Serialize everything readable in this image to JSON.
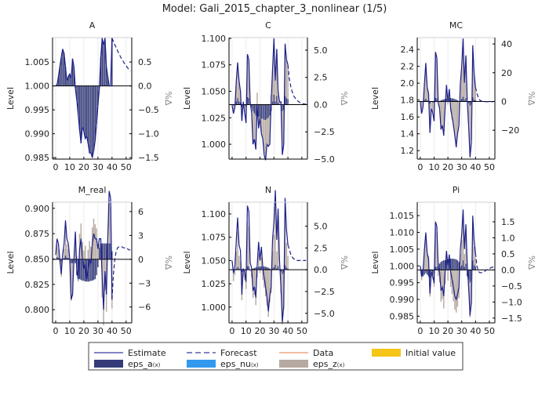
{
  "title": "Model: Gali_2015_chapter_3_nonlinear  (1/5)",
  "colors": {
    "estimate": "#1b1f8a",
    "eps_a": "#353b78",
    "eps_nu": "#3399ee",
    "eps_z": "#b5a9a1",
    "data": "#f4a582",
    "initial": "#f5c518",
    "zero_line": "#000000"
  },
  "legend": {
    "placement": "bottom",
    "items": [
      {
        "label": "Estimate",
        "kind": "line",
        "color": "#5a5ab0"
      },
      {
        "label": "Forecast",
        "kind": "dash",
        "color": "#5a5ab0"
      },
      {
        "label": "Data",
        "kind": "line",
        "color": "#f4a582"
      },
      {
        "label": "Initial value",
        "kind": "box",
        "color": "#f5c518"
      },
      {
        "label": "eps_a",
        "sub": "(x)",
        "kind": "box",
        "color": "#353b78"
      },
      {
        "label": "eps_nu",
        "sub": "(x)",
        "kind": "box",
        "color": "#3399ee"
      },
      {
        "label": "eps_z",
        "sub": "(x)",
        "kind": "box",
        "color": "#b5a9a1"
      }
    ]
  },
  "chart_data": [
    {
      "type": "bar+line",
      "title": "A",
      "ylabel": "Level",
      "y2label": "%Δ",
      "xlim": [
        -2.2,
        54
      ],
      "ylim": [
        0.9847,
        1.0101
      ],
      "y2lim": [
        -1.53,
        1.01
      ],
      "xticks": [
        "0",
        "10",
        "20",
        "30",
        "40",
        "50"
      ],
      "yticks": [
        [
          "0.985",
          0.985
        ],
        [
          "0.990",
          0.99
        ],
        [
          "0.995",
          0.995
        ],
        [
          "1.000",
          1.0
        ],
        [
          "1.005",
          1.005
        ]
      ],
      "y2ticks": [
        [
          "0.5",
          0.5
        ],
        [
          "0.0",
          0
        ],
        [
          "−0.5",
          -0.5
        ],
        [
          "−1.0",
          -1
        ],
        [
          "−1.5",
          -1.5
        ]
      ],
      "estimate": [
        1.0,
        1.0003,
        1.002,
        1.004,
        1.006,
        1.0077,
        1.0068,
        1.004,
        1.001,
        1.002,
        1.0025,
        1.0015,
        1.0057,
        1.004,
        0.9995,
        0.997,
        0.994,
        0.9908,
        0.988,
        0.9915,
        0.9905,
        0.989,
        0.9895,
        0.988,
        0.986,
        0.986,
        0.985,
        0.9865,
        0.9885,
        0.992,
        0.996,
        0.9995,
        1.006,
        1.01,
        1.0085,
        1.01,
        1.004,
        1.002,
        1.0,
        1.0,
        1.01
      ],
      "forecast": [
        1.01,
        1.0093,
        1.0086,
        1.008,
        1.0073,
        1.0067,
        1.0061,
        1.0056,
        1.0051,
        1.0046,
        1.0042,
        1.0038,
        1.0034,
        1.0031
      ],
      "eps_a": [
        0.03,
        0.2,
        0.4,
        0.6,
        0.77,
        0.68,
        0.4,
        0.1,
        0.2,
        0.25,
        0.15,
        0.57,
        0.4,
        -0.05,
        -0.3,
        -0.6,
        -0.92,
        -1.2,
        -0.85,
        -0.95,
        -1.1,
        -1.05,
        -1.2,
        -1.4,
        -1.4,
        -1.5,
        -1.35,
        -1.15,
        -0.8,
        -0.4,
        -0.05,
        0.6,
        1.0,
        0.85,
        1.0,
        0.4,
        0.2,
        0.0,
        0.0,
        1.0
      ],
      "eps_z": []
    },
    {
      "type": "bar+line",
      "title": "C",
      "ylabel": "Level",
      "y2label": "%Δ",
      "xlim": [
        -2.2,
        54
      ],
      "ylim": [
        0.986,
        1.1007
      ],
      "y2lim": [
        -5.0,
        6.15
      ],
      "xticks": [],
      "yticks": [
        [
          "1.000",
          1.0
        ],
        [
          "1.025",
          1.025
        ],
        [
          "1.050",
          1.05
        ],
        [
          "1.075",
          1.075
        ],
        [
          "1.100",
          1.1
        ]
      ],
      "y2ticks": [
        [
          "5.0",
          5
        ],
        [
          "2.5",
          2.5
        ],
        [
          "0.0",
          0
        ],
        [
          "−2.5",
          -2.5
        ],
        [
          "−5.0",
          -5
        ]
      ],
      "estimate": [
        1.037,
        1.029,
        1.035,
        1.06,
        1.077,
        1.06,
        1.05,
        1.022,
        1.04,
        1.03,
        1.02,
        1.085,
        1.08,
        1.04,
        1.03,
        1.0,
        1.005,
        0.995,
        1.037,
        1.015,
        1.025,
        1.01,
        1.005,
        0.99,
        0.985,
        1.0,
        0.998,
        1.0,
        1.04,
        1.07,
        1.1,
        1.06,
        1.09,
        1.05,
        1.04,
        1.04,
        0.99,
        1.0,
        1.095,
        1.08,
        1.075
      ],
      "forecast": [
        1.075,
        1.062,
        1.055,
        1.05,
        1.046,
        1.044,
        1.042,
        1.041,
        1.04,
        1.039,
        1.039,
        1.038,
        1.038,
        1.038
      ],
      "eps_a": [
        -0.1,
        0,
        0.3,
        0.6,
        0.3,
        0.2,
        -0.2,
        0,
        -0.1,
        -0.2,
        0.7,
        0.6,
        0,
        -0.3,
        -0.6,
        -0.8,
        -1,
        -1.1,
        -1.1,
        -1.2,
        -1.3,
        -1.3,
        -1.4,
        -1.4,
        -1.3,
        -1.2,
        -1,
        -0.6,
        0.3,
        0.9,
        0.3,
        0.8,
        0.2,
        0,
        0,
        -0.6,
        -0.5,
        0.8,
        0.6,
        0.5
      ],
      "eps_z": [
        -0.67,
        -0.19,
        1.9,
        3.3,
        1.9,
        1.05,
        -1.25,
        0.3,
        -0.6,
        -1.4,
        3.9,
        3.5,
        0.3,
        -0.4,
        -3.0,
        -2.3,
        -3.0,
        1.1,
        -1.0,
        0,
        -1.3,
        -1.8,
        -3.1,
        -3.6,
        -2.3,
        -2.6,
        -2.6,
        0.9,
        2.9,
        5.1,
        1.9,
        4.3,
        1.05,
        0.3,
        0.3,
        -3.9,
        -3.1,
        4.7,
        3.5,
        3.1
      ]
    },
    {
      "type": "bar+line",
      "title": "MC",
      "ylabel": "Level",
      "y2label": "%Δ",
      "xlim": [
        -2.2,
        54
      ],
      "ylim": [
        1.1,
        2.54
      ],
      "y2lim": [
        -40.1,
        44.4
      ],
      "xticks": [
        "0",
        "10",
        "20",
        "30",
        "40",
        "50"
      ],
      "yticks": [
        [
          "1.2",
          1.2
        ],
        [
          "1.4",
          1.4
        ],
        [
          "1.6",
          1.6
        ],
        [
          "1.8",
          1.8
        ],
        [
          "2.0",
          2.0
        ],
        [
          "2.2",
          2.2
        ],
        [
          "2.4",
          2.4
        ]
      ],
      "y2ticks": [
        [
          "40",
          40
        ],
        [
          "20",
          20
        ],
        [
          "0",
          0
        ],
        [
          "−20",
          -20
        ]
      ],
      "estimate": [
        1.78,
        1.64,
        1.72,
        2.0,
        2.24,
        1.95,
        1.88,
        1.41,
        1.7,
        1.65,
        1.55,
        2.37,
        2.3,
        1.76,
        1.7,
        1.45,
        1.5,
        1.38,
        1.72,
        1.98,
        1.78,
        1.93,
        1.7,
        1.6,
        1.5,
        1.38,
        1.24,
        1.4,
        1.5,
        2.0,
        2.2,
        2.53,
        2.0,
        2.33,
        1.78,
        1.5,
        1.12,
        1.3,
        2.45,
        2.1,
        1.95
      ],
      "forecast": [
        1.95,
        1.88,
        1.83,
        1.8,
        1.79,
        1.78,
        1.78,
        1.78,
        1.78,
        1.78,
        1.78,
        1.78,
        1.78,
        1.78
      ],
      "eps_a": [
        -0.6,
        -0.3,
        1,
        2,
        0.8,
        0.4,
        -1.6,
        -0.4,
        -0.6,
        -1,
        2.6,
        2.3,
        0,
        0.4,
        0.8,
        1.2,
        1.5,
        1.8,
        2,
        2.2,
        2.3,
        2.3,
        2.2,
        2,
        1.7,
        1.3,
        0.8,
        0,
        1,
        1.9,
        3.4,
        1,
        2.5,
        0,
        -1.3,
        -3,
        -2.2,
        3,
        1.4,
        0.8
      ],
      "eps_z": [
        -7.3,
        -3.1,
        11.4,
        23.8,
        8.8,
        5.2,
        -19.2,
        -4.1,
        -6.7,
        -11.9,
        30.5,
        26.9,
        -1.1,
        -4.9,
        -19.3,
        -16.9,
        -24,
        -5.2,
        9.2,
        -2.2,
        6.1,
        -6.8,
        -12.3,
        -17.7,
        -24.2,
        -31.6,
        -22.1,
        -15.7,
        11.4,
        21.7,
        38.7,
        11.4,
        28.4,
        0,
        -14.4,
        -34.1,
        -24.8,
        34.6,
        16.6,
        8.8
      ]
    },
    {
      "type": "bar+line",
      "title": "M_real",
      "ylabel": "Level",
      "y2label": "%Δ",
      "xlim": [
        -2.2,
        54
      ],
      "ylim": [
        0.787,
        0.906
      ],
      "y2lim": [
        -8.0,
        7.18
      ],
      "xticks": [
        "0",
        "10",
        "20",
        "30",
        "40",
        "50"
      ],
      "yticks": [
        [
          "0.800",
          0.8
        ],
        [
          "0.825",
          0.825
        ],
        [
          "0.850",
          0.85
        ],
        [
          "0.875",
          0.875
        ],
        [
          "0.900",
          0.9
        ]
      ],
      "y2ticks": [
        [
          "6",
          6
        ],
        [
          "3",
          3
        ],
        [
          "0",
          0
        ],
        [
          "−3",
          -3
        ],
        [
          "−6",
          -6
        ]
      ],
      "estimate": [
        0.854,
        0.87,
        0.865,
        0.85,
        0.835,
        0.855,
        0.865,
        0.888,
        0.87,
        0.865,
        0.85,
        0.81,
        0.815,
        0.85,
        0.877,
        0.84,
        0.83,
        0.86,
        0.87,
        0.85,
        0.84,
        0.845,
        0.83,
        0.84,
        0.85,
        0.845,
        0.865,
        0.875,
        0.87,
        0.87,
        0.86,
        0.87,
        0.87,
        0.83,
        0.8,
        0.838,
        0.815,
        0.87,
        0.917,
        0.91,
        0.81
      ],
      "forecast": [
        0.81,
        0.835,
        0.85,
        0.858,
        0.861,
        0.862,
        0.862,
        0.862,
        0.861,
        0.861,
        0.86,
        0.86,
        0.859,
        0.859
      ],
      "eps_a": [
        0.3,
        0.2,
        0,
        -0.3,
        0,
        0.2,
        0.5,
        0.2,
        0.2,
        0,
        -0.5,
        -0.5,
        -0.3,
        -0.5,
        -2,
        -2.3,
        -2.5,
        -2.6,
        -2.7,
        -2.7,
        -2.8,
        -2.8,
        -2.8,
        -2.8,
        -2.7,
        -2.7,
        -2.6,
        -2.5,
        -2,
        -1,
        1.5,
        2,
        2,
        2,
        2,
        2,
        2,
        2,
        2,
        1
      ],
      "eps_z": [
        1.6,
        1.1,
        -0.5,
        -1.9,
        0.1,
        1.1,
        3.5,
        1.7,
        1.1,
        -0.5,
        -4.7,
        -4.1,
        -0.2,
        3.2,
        0.4,
        -0.5,
        3.2,
        4.5,
        2.2,
        1.1,
        1.7,
        0,
        1.2,
        2.3,
        1.6,
        4,
        5.1,
        4.4,
        3.9,
        1.7,
        0.4,
        -0.1,
        -4.8,
        -8.3,
        -3.9,
        -6.6,
        -0.1,
        5.4,
        4.6,
        -6.2
      ]
    },
    {
      "type": "bar+line",
      "title": "N",
      "ylabel": "Level",
      "y2label": "%Δ",
      "xlim": [
        -2.2,
        54
      ],
      "ylim": [
        0.983,
        1.1126
      ],
      "y2lim": [
        -6.1,
        7.75
      ],
      "xticks": [
        "0",
        "10",
        "20",
        "30",
        "40",
        "50"
      ],
      "yticks": [
        [
          "1.000",
          1.0
        ],
        [
          "1.025",
          1.025
        ],
        [
          "1.050",
          1.05
        ],
        [
          "1.075",
          1.075
        ],
        [
          "1.100",
          1.1
        ]
      ],
      "y2ticks": [
        [
          "5.0",
          5
        ],
        [
          "2.5",
          2.5
        ],
        [
          "0.0",
          0
        ],
        [
          "−2.5",
          -2.5
        ],
        [
          "−5.0",
          -5
        ]
      ],
      "estimate": [
        1.05,
        1.0364,
        1.0437,
        1.0721,
        1.0962,
        1.0668,
        1.0605,
        1.0133,
        1.0416,
        1.0374,
        1.0269,
        1.1088,
        1.1025,
        1.0479,
        1.0416,
        1.0175,
        1.0217,
        1.0101,
        1.0437,
        1.07,
        1.05,
        1.0647,
        1.0416,
        1.0322,
        1.0217,
        1.0101,
        0.9954,
        1.0122,
        1.0217,
        1.0721,
        1.092,
        1.1256,
        1.0721,
        1.1057,
        1.05,
        1.0217,
        0.9839,
        1.0017,
        1.1172,
        1.0826,
        1.0668
      ],
      "forecast": [
        1.0668,
        1.062,
        1.057,
        1.054,
        1.052,
        1.051,
        1.05,
        1.05,
        1.05,
        1.05,
        1.05,
        1.05,
        1.05,
        1.05
      ],
      "eps_a": [
        -0.1,
        -0.05,
        0.17,
        0.34,
        0.14,
        0.07,
        -0.27,
        -0.07,
        -0.1,
        -0.17,
        0.44,
        0.39,
        0,
        0.07,
        0.14,
        0.2,
        0.26,
        0.31,
        0.34,
        0.37,
        0.39,
        0.39,
        0.37,
        0.34,
        0.29,
        0.22,
        0.14,
        0,
        0.17,
        0.32,
        0.58,
        0.17,
        0.43,
        0,
        -0.22,
        -0.51,
        -0.37,
        0.51,
        0.24,
        0.14
      ],
      "eps_z": [
        -1.2,
        -0.55,
        1.93,
        4.06,
        1.46,
        0.93,
        -3.23,
        -0.73,
        -1.1,
        -2.03,
        5.16,
        4.61,
        -0.2,
        -0.87,
        -3.24,
        -2.9,
        -4.06,
        -0.91,
        1.56,
        -0.37,
        1.01,
        -1.19,
        -2.07,
        -3.04,
        -4.09,
        -5.42,
        -3.74,
        -2.7,
        1.93,
        3.68,
        6.62,
        1.93,
        4.87,
        0,
        -2.48,
        -5.79,
        -4.23,
        5.89,
        2.86,
        1.46
      ]
    },
    {
      "type": "bar+line",
      "title": "Pi",
      "ylabel": "Level",
      "y2label": "%Δ",
      "xlim": [
        -2.2,
        54
      ],
      "ylim": [
        0.983,
        1.019
      ],
      "y2lim": [
        -1.65,
        2.11
      ],
      "xticks": [
        "0",
        "10",
        "20",
        "30",
        "40",
        "50"
      ],
      "yticks": [
        [
          "0.985",
          0.985
        ],
        [
          "0.990",
          0.99
        ],
        [
          "0.995",
          0.995
        ],
        [
          "1.000",
          1.0
        ],
        [
          "1.005",
          1.005
        ],
        [
          "1.010",
          1.01
        ],
        [
          "1.015",
          1.015
        ]
      ],
      "y2ticks": [
        [
          "1.5",
          1.5
        ],
        [
          "1.0",
          1
        ],
        [
          "0.5",
          0.5
        ],
        [
          "0.0",
          0
        ],
        [
          "−0.5",
          -0.5
        ],
        [
          "−1.0",
          -1
        ],
        [
          "−1.5",
          -1.5
        ]
      ],
      "estimate": [
        1.0,
        0.9968,
        0.9986,
        1.005,
        1.01,
        1.0038,
        1.0022,
        0.9917,
        0.9982,
        0.9971,
        0.9948,
        1.0132,
        1.0117,
        0.9996,
        0.9982,
        0.9926,
        0.9937,
        0.991,
        0.9986,
        1.0045,
        1.0,
        1.0034,
        0.9982,
        0.996,
        0.9937,
        0.991,
        0.99,
        0.9915,
        0.9937,
        1.005,
        1.0094,
        1.0168,
        1.005,
        1.0124,
        1.0,
        0.9937,
        0.9852,
        0.9892,
        1.015,
        1.0072,
        1.0038
      ],
      "forecast": [
        1.0038,
        1.0,
        0.9985,
        0.998,
        0.998,
        0.998,
        0.9982,
        0.9985,
        0.9988,
        0.999,
        0.9992,
        0.9994,
        0.9996,
        0.9997
      ],
      "eps_a": [
        -0.2,
        -0.2,
        -0.15,
        -0.1,
        -0.15,
        -0.2,
        -0.25,
        -0.2,
        -0.15,
        -0.1,
        0.1,
        0.1,
        0.15,
        0.2,
        0.25,
        0.28,
        0.3,
        0.3,
        0.32,
        0.33,
        0.34,
        0.35,
        0.35,
        0.35,
        0.34,
        0.33,
        0.3,
        0.25,
        0.1,
        0.15,
        0.3,
        0.1,
        0.2,
        -0.2,
        -0.3,
        -0.4,
        -0.35,
        0.3,
        0.15,
        0.1
      ],
      "eps_z": [
        -0.12,
        0.06,
        0.65,
        1.1,
        0.53,
        0.42,
        -0.58,
        0.02,
        -0.14,
        -0.42,
        1.22,
        1.07,
        -0.19,
        -0.38,
        -0.99,
        -0.91,
        -1.2,
        -0.44,
        0.13,
        -0.33,
        0,
        -0.53,
        -0.75,
        -0.98,
        -1.24,
        -1.33,
        -1.15,
        -0.88,
        0.4,
        0.79,
        1.38,
        0.4,
        1.04,
        0.2,
        -0.33,
        -1.08,
        -0.73,
        1.2,
        0.57,
        0.28
      ]
    }
  ]
}
